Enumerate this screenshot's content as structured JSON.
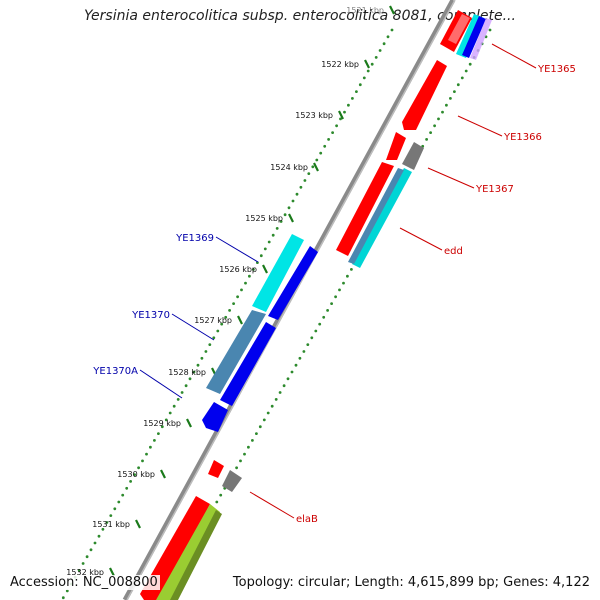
{
  "title": "Yersinia enterocolitica subsp. enterocolitica 8081, complete...",
  "footer": {
    "accession": "Accession: NC_008800",
    "topology": "Topology: circular; Length: 4,615,899 bp; Genes: 4,122"
  },
  "ticks": [
    "1521 kbp",
    "1522 kbp",
    "1523 kbp",
    "1524 kbp",
    "1525 kbp",
    "1526 kbp",
    "1527 kbp",
    "1528 kbp",
    "1529 kbp",
    "1530 kbp",
    "1531 kbp",
    "1532 kbp"
  ],
  "gene_labels": [
    {
      "name": "YE1365",
      "strand": "forward"
    },
    {
      "name": "YE1366",
      "strand": "forward"
    },
    {
      "name": "YE1367",
      "strand": "forward"
    },
    {
      "name": "edd",
      "strand": "forward"
    },
    {
      "name": "YE1369",
      "strand": "reverse"
    },
    {
      "name": "YE1370",
      "strand": "reverse"
    },
    {
      "name": "YE1370A",
      "strand": "reverse"
    },
    {
      "name": "elaB",
      "strand": "forward"
    }
  ],
  "colors": {
    "forward_cds": "#ff0000",
    "reverse_cds": "#0000ee",
    "forward_label": "#cc0000",
    "reverse_label": "#0000aa",
    "cyan_feature": "#00e5e5",
    "steel_feature": "#4a86b0",
    "grey_feature": "#777777",
    "green_feature": "#9acd32",
    "backbone": "#888888",
    "gc_dots": "#2d8a2d",
    "tick_marks": "#1a7a1a"
  }
}
